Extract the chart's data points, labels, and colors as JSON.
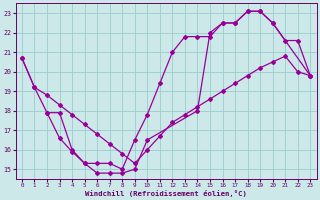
{
  "xlabel": "Windchill (Refroidissement éolien,°C)",
  "background_color": "#cce8e8",
  "line_color": "#990099",
  "grid_color": "#99cccc",
  "xlim": [
    -0.5,
    23.5
  ],
  "ylim": [
    14.5,
    23.5
  ],
  "yticks": [
    15,
    16,
    17,
    18,
    19,
    20,
    21,
    22,
    23
  ],
  "xticks": [
    0,
    1,
    2,
    3,
    4,
    5,
    6,
    7,
    8,
    9,
    10,
    11,
    12,
    13,
    14,
    15,
    16,
    17,
    18,
    19,
    20,
    21,
    22,
    23
  ],
  "line1_x": [
    0,
    1,
    2,
    3,
    4,
    5,
    6,
    7,
    8,
    9,
    10,
    11,
    12,
    13,
    14,
    15,
    16,
    17,
    18,
    19,
    20,
    21,
    22,
    23
  ],
  "line1_y": [
    20.7,
    19.2,
    18.8,
    18.3,
    17.8,
    17.3,
    16.8,
    16.3,
    15.8,
    15.3,
    16.0,
    16.7,
    17.4,
    17.8,
    18.2,
    18.6,
    19.0,
    19.4,
    19.8,
    20.2,
    20.5,
    20.8,
    20.0,
    19.8
  ],
  "line2_x": [
    0,
    1,
    2,
    3,
    4,
    5,
    6,
    7,
    8,
    9,
    10,
    11,
    12,
    13,
    14,
    15,
    16,
    17,
    18,
    19,
    20,
    21,
    22,
    23
  ],
  "line2_y": [
    20.7,
    19.2,
    17.9,
    17.9,
    16.0,
    15.3,
    15.3,
    15.3,
    15.0,
    16.5,
    17.8,
    19.4,
    21.0,
    21.8,
    21.8,
    21.8,
    22.5,
    22.5,
    23.1,
    23.1,
    22.5,
    21.6,
    21.6,
    19.8
  ],
  "line3_x": [
    2,
    3,
    4,
    5,
    6,
    7,
    8,
    9,
    10,
    14,
    15,
    16,
    17,
    18,
    19,
    20,
    23
  ],
  "line3_y": [
    17.9,
    16.6,
    15.9,
    15.3,
    14.8,
    14.8,
    14.8,
    15.0,
    16.5,
    18.0,
    22.0,
    22.5,
    22.5,
    23.1,
    23.1,
    22.5,
    19.8
  ]
}
